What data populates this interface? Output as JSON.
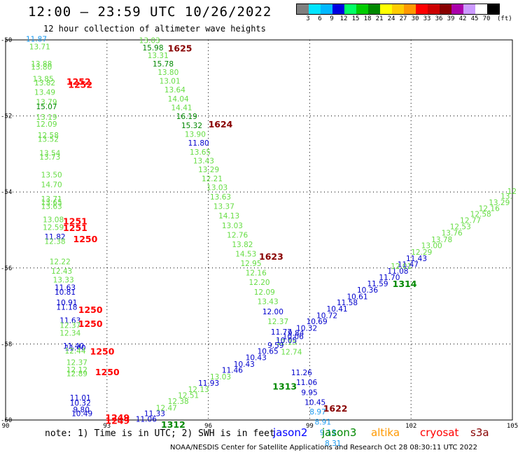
{
  "header": {
    "title": "12:00 — 23:59 UTC 10/26/2022",
    "subtitle": "12 hour collection of altimeter wave heights"
  },
  "legend": {
    "colors": [
      "#7f7f7f",
      "#00e5ff",
      "#00b8ff",
      "#0000e0",
      "#00ff66",
      "#00cc00",
      "#008800",
      "#ffff00",
      "#ffcc00",
      "#ff9900",
      "#ff0000",
      "#cc0000",
      "#880000",
      "#aa00aa",
      "#cc99ff",
      "#ffffff",
      "#000000"
    ],
    "labels": [
      "3",
      "6",
      "9",
      "12",
      "15",
      "18",
      "21",
      "24",
      "27",
      "30",
      "33",
      "36",
      "39",
      "42",
      "45",
      "70"
    ],
    "unit": "(ft)"
  },
  "chart_data": {
    "type": "map",
    "x_ticks": [
      "90",
      "93",
      "96",
      "99",
      "102",
      "105"
    ],
    "y_ticks": [
      "-50",
      "-52",
      "-54",
      "-56",
      "-58",
      "-60"
    ],
    "lon_range": [
      90,
      105
    ],
    "lat_range": [
      -60,
      -50
    ],
    "labels": [
      {
        "t": "11.87",
        "x": 90.6,
        "y": -50.05,
        "c": "#1a9af0"
      },
      {
        "t": "13.71",
        "x": 90.7,
        "y": -50.25,
        "c": "#66dd44"
      },
      {
        "t": "13.88",
        "x": 90.75,
        "y": -50.7,
        "c": "#66dd44"
      },
      {
        "t": "13.80",
        "x": 90.75,
        "y": -50.78,
        "c": "#66dd44"
      },
      {
        "t": "13.85",
        "x": 90.8,
        "y": -51.1,
        "c": "#66dd44"
      },
      {
        "t": "13.82",
        "x": 90.85,
        "y": -51.2,
        "c": "#66dd44"
      },
      {
        "t": "13.49",
        "x": 90.85,
        "y": -51.45,
        "c": "#66dd44"
      },
      {
        "t": "13.79",
        "x": 90.9,
        "y": -51.7,
        "c": "#66dd44"
      },
      {
        "t": "15.07",
        "x": 90.9,
        "y": -51.82,
        "c": "#008800"
      },
      {
        "t": "13.19",
        "x": 90.9,
        "y": -52.1,
        "c": "#66dd44"
      },
      {
        "t": "12.09",
        "x": 90.9,
        "y": -52.28,
        "c": "#66dd44"
      },
      {
        "t": "12.58",
        "x": 90.95,
        "y": -52.58,
        "c": "#66dd44"
      },
      {
        "t": "13.52",
        "x": 90.95,
        "y": -52.68,
        "c": "#66dd44"
      },
      {
        "t": "13.54",
        "x": 91.0,
        "y": -53.05,
        "c": "#66dd44"
      },
      {
        "t": "13.73",
        "x": 91.0,
        "y": -53.15,
        "c": "#66dd44"
      },
      {
        "t": "13.50",
        "x": 91.05,
        "y": -53.62,
        "c": "#66dd44"
      },
      {
        "t": "14.70",
        "x": 91.05,
        "y": -53.88,
        "c": "#66dd44"
      },
      {
        "t": "13.71",
        "x": 91.05,
        "y": -54.25,
        "c": "#66dd44"
      },
      {
        "t": "13.65",
        "x": 91.05,
        "y": -54.35,
        "c": "#66dd44"
      },
      {
        "t": "13.63",
        "x": 91.05,
        "y": -54.45,
        "c": "#66dd44"
      },
      {
        "t": "13.08",
        "x": 91.1,
        "y": -54.8,
        "c": "#66dd44"
      },
      {
        "t": "12.59",
        "x": 91.1,
        "y": -55.0,
        "c": "#66dd44"
      },
      {
        "t": "11.82",
        "x": 91.15,
        "y": -55.25,
        "c": "#0000cc"
      },
      {
        "t": "12.38",
        "x": 91.15,
        "y": -55.37,
        "c": "#66dd44"
      },
      {
        "t": "12.22",
        "x": 91.3,
        "y": -55.9,
        "c": "#66dd44"
      },
      {
        "t": "12.43",
        "x": 91.35,
        "y": -56.15,
        "c": "#66dd44"
      },
      {
        "t": "13.33",
        "x": 91.4,
        "y": -56.38,
        "c": "#66dd44"
      },
      {
        "t": "11.63",
        "x": 91.45,
        "y": -56.58,
        "c": "#0000cc"
      },
      {
        "t": "10.81",
        "x": 91.45,
        "y": -56.7,
        "c": "#0000cc"
      },
      {
        "t": "10.91",
        "x": 91.5,
        "y": -56.98,
        "c": "#0000cc"
      },
      {
        "t": "11.18",
        "x": 91.5,
        "y": -57.1,
        "c": "#0000cc"
      },
      {
        "t": "11.63",
        "x": 91.6,
        "y": -57.45,
        "c": "#0000cc"
      },
      {
        "t": "12.37",
        "x": 91.6,
        "y": -57.58,
        "c": "#66dd44"
      },
      {
        "t": "12.34",
        "x": 91.6,
        "y": -57.78,
        "c": "#66dd44"
      },
      {
        "t": "11.40",
        "x": 91.7,
        "y": -58.12,
        "c": "#0000cc"
      },
      {
        "t": "11.40",
        "x": 91.75,
        "y": -58.17,
        "c": "#0000cc"
      },
      {
        "t": "12.44",
        "x": 91.75,
        "y": -58.25,
        "c": "#66dd44"
      },
      {
        "t": "12.37",
        "x": 91.8,
        "y": -58.55,
        "c": "#66dd44"
      },
      {
        "t": "12.12",
        "x": 91.8,
        "y": -58.75,
        "c": "#66dd44"
      },
      {
        "t": "12.89",
        "x": 91.8,
        "y": -58.85,
        "c": "#66dd44"
      },
      {
        "t": "11.01",
        "x": 91.9,
        "y": -59.48,
        "c": "#0000cc"
      },
      {
        "t": "10.32",
        "x": 91.9,
        "y": -59.62,
        "c": "#0000cc"
      },
      {
        "t": "9.80",
        "x": 92.0,
        "y": -59.8,
        "c": "#0000cc"
      },
      {
        "t": "10.49",
        "x": 91.95,
        "y": -59.9,
        "c": "#0000cc"
      },
      {
        "t": "13.03",
        "x": 93.95,
        "y": -50.08,
        "c": "#66dd44"
      },
      {
        "t": "15.98",
        "x": 94.05,
        "y": -50.28,
        "c": "#008800"
      },
      {
        "t": "13.31",
        "x": 94.2,
        "y": -50.48,
        "c": "#66dd44"
      },
      {
        "t": "15.78",
        "x": 94.35,
        "y": -50.7,
        "c": "#008800"
      },
      {
        "t": "13.80",
        "x": 94.5,
        "y": -50.92,
        "c": "#66dd44"
      },
      {
        "t": "13.01",
        "x": 94.55,
        "y": -51.15,
        "c": "#66dd44"
      },
      {
        "t": "13.64",
        "x": 94.7,
        "y": -51.38,
        "c": "#66dd44"
      },
      {
        "t": "14.04",
        "x": 94.8,
        "y": -51.62,
        "c": "#66dd44"
      },
      {
        "t": "14.41",
        "x": 94.9,
        "y": -51.85,
        "c": "#66dd44"
      },
      {
        "t": "16.19",
        "x": 95.05,
        "y": -52.08,
        "c": "#008800"
      },
      {
        "t": "15.32",
        "x": 95.2,
        "y": -52.32,
        "c": "#008800"
      },
      {
        "t": "13.90",
        "x": 95.3,
        "y": -52.55,
        "c": "#66dd44"
      },
      {
        "t": "11.80",
        "x": 95.4,
        "y": -52.78,
        "c": "#0000cc"
      },
      {
        "t": "13.65",
        "x": 95.45,
        "y": -53.02,
        "c": "#66dd44"
      },
      {
        "t": "13.43",
        "x": 95.55,
        "y": -53.25,
        "c": "#66dd44"
      },
      {
        "t": "13.29",
        "x": 95.7,
        "y": -53.48,
        "c": "#66dd44"
      },
      {
        "t": "12.21",
        "x": 95.8,
        "y": -53.72,
        "c": "#66dd44"
      },
      {
        "t": "13.03",
        "x": 95.95,
        "y": -53.95,
        "c": "#66dd44"
      },
      {
        "t": "13.63",
        "x": 96.05,
        "y": -54.2,
        "c": "#66dd44"
      },
      {
        "t": "13.37",
        "x": 96.15,
        "y": -54.45,
        "c": "#66dd44"
      },
      {
        "t": "14.13",
        "x": 96.3,
        "y": -54.7,
        "c": "#66dd44"
      },
      {
        "t": "13.03",
        "x": 96.4,
        "y": -54.95,
        "c": "#66dd44"
      },
      {
        "t": "12.76",
        "x": 96.55,
        "y": -55.2,
        "c": "#66dd44"
      },
      {
        "t": "13.82",
        "x": 96.7,
        "y": -55.45,
        "c": "#66dd44"
      },
      {
        "t": "14.53",
        "x": 96.8,
        "y": -55.7,
        "c": "#66dd44"
      },
      {
        "t": "12.95",
        "x": 96.95,
        "y": -55.95,
        "c": "#66dd44"
      },
      {
        "t": "12.16",
        "x": 97.1,
        "y": -56.2,
        "c": "#66dd44"
      },
      {
        "t": "12.20",
        "x": 97.2,
        "y": -56.45,
        "c": "#66dd44"
      },
      {
        "t": "12.09",
        "x": 97.35,
        "y": -56.7,
        "c": "#66dd44"
      },
      {
        "t": "13.43",
        "x": 97.45,
        "y": -56.95,
        "c": "#66dd44"
      },
      {
        "t": "12.00",
        "x": 97.6,
        "y": -57.22,
        "c": "#0000cc"
      },
      {
        "t": "12.37",
        "x": 97.75,
        "y": -57.48,
        "c": "#66dd44"
      },
      {
        "t": "11.77",
        "x": 97.85,
        "y": -57.75,
        "c": "#0000cc"
      },
      {
        "t": "12.15",
        "x": 98.0,
        "y": -58.02,
        "c": "#66dd44"
      },
      {
        "t": "12.74",
        "x": 98.15,
        "y": -58.28,
        "c": "#66dd44"
      },
      {
        "t": "11.26",
        "x": 98.45,
        "y": -58.82,
        "c": "#0000cc"
      },
      {
        "t": "11.06",
        "x": 98.6,
        "y": -59.08,
        "c": "#0000cc"
      },
      {
        "t": "9.95",
        "x": 98.75,
        "y": -59.35,
        "c": "#0000cc"
      },
      {
        "t": "10.45",
        "x": 98.85,
        "y": -59.6,
        "c": "#0000cc"
      },
      {
        "t": "8.97",
        "x": 99.0,
        "y": -59.85,
        "c": "#1a9af0"
      },
      {
        "t": "8.91",
        "x": 99.15,
        "y": -60.12,
        "c": "#1a9af0"
      },
      {
        "t": "9.13",
        "x": 99.3,
        "y": -60.4,
        "c": "#1a9af0"
      },
      {
        "t": "8.31",
        "x": 99.45,
        "y": -60.68,
        "c": "#1a9af0"
      },
      {
        "t": "11.06",
        "x": 93.85,
        "y": -60.05,
        "c": "#0000cc"
      },
      {
        "t": "11.33",
        "x": 94.1,
        "y": -59.9,
        "c": "#0000cc"
      },
      {
        "t": "12.47",
        "x": 94.45,
        "y": -59.75,
        "c": "#66dd44"
      },
      {
        "t": "12.38",
        "x": 94.8,
        "y": -59.58,
        "c": "#66dd44"
      },
      {
        "t": "12.51",
        "x": 95.1,
        "y": -59.42,
        "c": "#66dd44"
      },
      {
        "t": "12.13",
        "x": 95.4,
        "y": -59.26,
        "c": "#66dd44"
      },
      {
        "t": "11.93",
        "x": 95.7,
        "y": -59.1,
        "c": "#0000cc"
      },
      {
        "t": "13.03",
        "x": 96.05,
        "y": -58.93,
        "c": "#66dd44"
      },
      {
        "t": "11.46",
        "x": 96.4,
        "y": -58.76,
        "c": "#0000cc"
      },
      {
        "t": "10.43",
        "x": 96.75,
        "y": -58.6,
        "c": "#0000cc"
      },
      {
        "t": "10.43",
        "x": 97.1,
        "y": -58.43,
        "c": "#0000cc"
      },
      {
        "t": "10.65",
        "x": 97.45,
        "y": -58.26,
        "c": "#0000cc"
      },
      {
        "t": "9.59",
        "x": 97.75,
        "y": -58.1,
        "c": "#0000cc"
      },
      {
        "t": "10.05",
        "x": 98.0,
        "y": -57.97,
        "c": "#0000cc"
      },
      {
        "t": "10.06",
        "x": 98.2,
        "y": -57.87,
        "c": "#0000cc"
      },
      {
        "t": "9.84",
        "x": 98.35,
        "y": -57.78,
        "c": "#0000cc"
      },
      {
        "t": "10.32",
        "x": 98.6,
        "y": -57.65,
        "c": "#0000cc"
      },
      {
        "t": "10.69",
        "x": 98.9,
        "y": -57.48,
        "c": "#0000cc"
      },
      {
        "t": "10.72",
        "x": 99.2,
        "y": -57.32,
        "c": "#0000cc"
      },
      {
        "t": "10.41",
        "x": 99.5,
        "y": -57.15,
        "c": "#0000cc"
      },
      {
        "t": "11.58",
        "x": 99.8,
        "y": -56.98,
        "c": "#0000cc"
      },
      {
        "t": "10.61",
        "x": 100.1,
        "y": -56.82,
        "c": "#0000cc"
      },
      {
        "t": "10.36",
        "x": 100.4,
        "y": -56.65,
        "c": "#0000cc"
      },
      {
        "t": "11.59",
        "x": 100.7,
        "y": -56.48,
        "c": "#0000cc"
      },
      {
        "t": "11.70",
        "x": 101.05,
        "y": -56.32,
        "c": "#0000cc"
      },
      {
        "t": "11.08",
        "x": 101.3,
        "y": -56.15,
        "c": "#0000cc"
      },
      {
        "t": "12.01",
        "x": 101.4,
        "y": -56.02,
        "c": "#66dd44"
      },
      {
        "t": "11.47",
        "x": 101.6,
        "y": -55.98,
        "c": "#0000cc"
      },
      {
        "t": "11.43",
        "x": 101.85,
        "y": -55.82,
        "c": "#0000cc"
      },
      {
        "t": "12.29",
        "x": 102.0,
        "y": -55.65,
        "c": "#66dd44"
      },
      {
        "t": "13.00",
        "x": 102.3,
        "y": -55.48,
        "c": "#66dd44"
      },
      {
        "t": "13.78",
        "x": 102.6,
        "y": -55.32,
        "c": "#66dd44"
      },
      {
        "t": "13.76",
        "x": 102.9,
        "y": -55.15,
        "c": "#66dd44"
      },
      {
        "t": "12.53",
        "x": 103.15,
        "y": -54.98,
        "c": "#66dd44"
      },
      {
        "t": "12.77",
        "x": 103.45,
        "y": -54.82,
        "c": "#66dd44"
      },
      {
        "t": "12.58",
        "x": 103.75,
        "y": -54.65,
        "c": "#66dd44"
      },
      {
        "t": "12.16",
        "x": 104.0,
        "y": -54.5,
        "c": "#66dd44"
      },
      {
        "t": "13.29",
        "x": 104.3,
        "y": -54.35,
        "c": "#66dd44"
      },
      {
        "t": "13.",
        "x": 104.65,
        "y": -54.18,
        "c": "#66dd44"
      },
      {
        "t": "12",
        "x": 104.85,
        "y": -54.05,
        "c": "#66dd44"
      }
    ],
    "time_marks": [
      {
        "t": "1625",
        "x": 94.8,
        "y": -50.3,
        "c": "#880000"
      },
      {
        "t": "1252",
        "x": 91.8,
        "y": -51.18,
        "c": "#ff0000"
      },
      {
        "t": "1252",
        "x": 91.85,
        "y": -51.26,
        "c": "#ff0000"
      },
      {
        "t": "1624",
        "x": 96.0,
        "y": -52.3,
        "c": "#880000"
      },
      {
        "t": "1251",
        "x": 91.7,
        "y": -54.85,
        "c": "#ff0000"
      },
      {
        "t": "1251",
        "x": 91.7,
        "y": -55.03,
        "c": "#ff0000"
      },
      {
        "t": "1250",
        "x": 92.0,
        "y": -55.32,
        "c": "#ff0000"
      },
      {
        "t": "1623",
        "x": 97.5,
        "y": -55.78,
        "c": "#880000"
      },
      {
        "t": "1314",
        "x": 101.45,
        "y": -56.5,
        "c": "#008800"
      },
      {
        "t": "1250",
        "x": 92.15,
        "y": -57.18,
        "c": "#ff0000"
      },
      {
        "t": "1250",
        "x": 92.15,
        "y": -57.55,
        "c": "#ff0000"
      },
      {
        "t": "1250",
        "x": 92.5,
        "y": -58.28,
        "c": "#ff0000"
      },
      {
        "t": "1250",
        "x": 92.65,
        "y": -58.82,
        "c": "#ff0000"
      },
      {
        "t": "1313",
        "x": 97.9,
        "y": -59.2,
        "c": "#008800"
      },
      {
        "t": "1622",
        "x": 99.4,
        "y": -59.78,
        "c": "#880000"
      },
      {
        "t": "1249",
        "x": 92.95,
        "y": -60.02,
        "c": "#ff0000"
      },
      {
        "t": "1249",
        "x": 92.95,
        "y": -60.1,
        "c": "#ff0000"
      },
      {
        "t": "1312",
        "x": 94.6,
        "y": -60.2,
        "c": "#008800"
      }
    ]
  },
  "footer": {
    "note": "note: 1) Time is in UTC; 2) SWH is in feet",
    "satellites": [
      {
        "name": "jason2",
        "color": "#0000ff"
      },
      {
        "name": "jason3",
        "color": "#008800"
      },
      {
        "name": "altika",
        "color": "#ff9900"
      },
      {
        "name": "cryosat",
        "color": "#ff0000"
      },
      {
        "name": "s3a",
        "color": "#880000"
      }
    ],
    "credit": "NOAA/NESDIS Center for Satellite Applications and Research   Oct 28 08:30:11 UTC 2022"
  }
}
